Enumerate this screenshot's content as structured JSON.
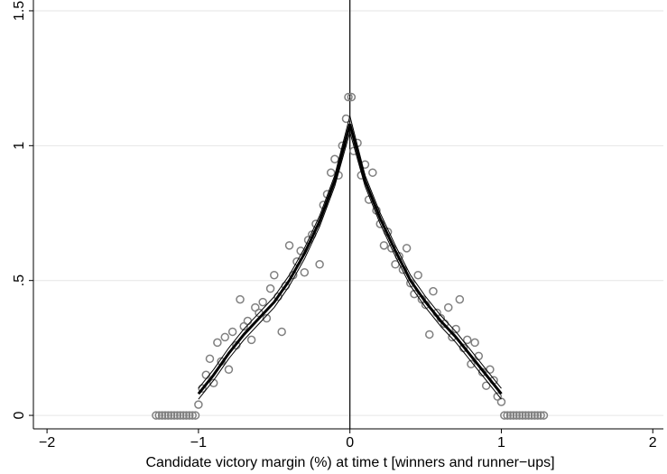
{
  "chart_data": {
    "type": "scatter",
    "x_label": "Candidate victory margin (%) at time t [winners and runner−ups]",
    "xlim": [
      -2.09,
      2.07
    ],
    "ylim": [
      -0.05,
      1.54
    ],
    "xticks": [
      {
        "value": -2,
        "label": "−2"
      },
      {
        "value": -1,
        "label": "−1"
      },
      0,
      1,
      2
    ],
    "yticks": [
      0,
      {
        "value": 0.5,
        "label": ".5"
      },
      1,
      1.5
    ],
    "grid": true,
    "vline": 0,
    "series": [
      {
        "type": "scatter",
        "color": "#808080",
        "x": [
          -1.0,
          -0.975,
          -0.95,
          -0.925,
          -0.9,
          -0.875,
          -0.85,
          -0.825,
          -0.8,
          -0.775,
          -0.75,
          -0.725,
          -0.7,
          -0.675,
          -0.65,
          -0.625,
          -0.6,
          -0.575,
          -0.55,
          -0.525,
          -0.5,
          -0.475,
          -0.45,
          -0.425,
          -0.4,
          -0.375,
          -0.35,
          -0.325,
          -0.3,
          -0.275,
          -0.25,
          -0.225,
          -0.2,
          -0.175,
          -0.15,
          -0.125,
          -0.1,
          -0.075,
          -0.05,
          -0.025,
          -0.01,
          0.01,
          0.025,
          0.05,
          0.075,
          0.1,
          0.125,
          0.15,
          0.175,
          0.2,
          0.225,
          0.25,
          0.275,
          0.3,
          0.325,
          0.35,
          0.375,
          0.4,
          0.425,
          0.45,
          0.475,
          0.5,
          0.525,
          0.55,
          0.575,
          0.6,
          0.625,
          0.65,
          0.675,
          0.7,
          0.725,
          0.75,
          0.775,
          0.8,
          0.825,
          0.85,
          0.875,
          0.9,
          0.925,
          0.95,
          0.975,
          1.0
        ],
        "values": [
          0.04,
          0.1,
          0.15,
          0.21,
          0.12,
          0.27,
          0.2,
          0.29,
          0.17,
          0.31,
          0.26,
          0.43,
          0.33,
          0.35,
          0.28,
          0.4,
          0.38,
          0.42,
          0.36,
          0.47,
          0.52,
          0.44,
          0.31,
          0.48,
          0.63,
          0.52,
          0.57,
          0.61,
          0.53,
          0.65,
          0.67,
          0.71,
          0.56,
          0.78,
          0.82,
          0.9,
          0.95,
          0.89,
          1.0,
          1.1,
          1.18,
          1.18,
          0.98,
          1.01,
          0.89,
          0.93,
          0.8,
          0.9,
          0.76,
          0.71,
          0.63,
          0.68,
          0.62,
          0.56,
          0.59,
          0.54,
          0.62,
          0.49,
          0.45,
          0.52,
          0.43,
          0.41,
          0.3,
          0.46,
          0.38,
          0.36,
          0.34,
          0.4,
          0.29,
          0.32,
          0.43,
          0.25,
          0.28,
          0.19,
          0.27,
          0.22,
          0.16,
          0.11,
          0.17,
          0.13,
          0.07,
          0.05
        ]
      },
      {
        "type": "scatter",
        "color": "#808080",
        "x": [
          -1.28,
          -1.26,
          -1.24,
          -1.22,
          -1.2,
          -1.18,
          -1.16,
          -1.14,
          -1.12,
          -1.1,
          -1.08,
          -1.06,
          -1.04,
          -1.02,
          1.02,
          1.04,
          1.06,
          1.08,
          1.1,
          1.12,
          1.14,
          1.16,
          1.18,
          1.2,
          1.22,
          1.24,
          1.26,
          1.28
        ],
        "values": [
          0,
          0,
          0,
          0,
          0,
          0,
          0,
          0,
          0,
          0,
          0,
          0,
          0,
          0,
          0,
          0,
          0,
          0,
          0,
          0,
          0,
          0,
          0,
          0,
          0,
          0,
          0,
          0
        ]
      },
      {
        "type": "line",
        "color": "#000000",
        "width": 3,
        "x": [
          -1,
          -0.9,
          -0.8,
          -0.7,
          -0.6,
          -0.5,
          -0.4,
          -0.3,
          -0.2,
          -0.1,
          0
        ],
        "values": [
          0.08,
          0.15,
          0.23,
          0.3,
          0.36,
          0.42,
          0.5,
          0.6,
          0.72,
          0.87,
          1.08
        ]
      },
      {
        "type": "line",
        "color": "#000000",
        "width": 1,
        "x": [
          -1,
          -0.9,
          -0.8,
          -0.7,
          -0.6,
          -0.5,
          -0.4,
          -0.3,
          -0.2,
          -0.1,
          0
        ],
        "values": [
          0.06,
          0.13,
          0.21,
          0.28,
          0.34,
          0.4,
          0.48,
          0.58,
          0.7,
          0.85,
          1.05
        ]
      },
      {
        "type": "line",
        "color": "#000000",
        "width": 1,
        "x": [
          -1,
          -0.9,
          -0.8,
          -0.7,
          -0.6,
          -0.5,
          -0.4,
          -0.3,
          -0.2,
          -0.1,
          0
        ],
        "values": [
          0.1,
          0.17,
          0.25,
          0.32,
          0.38,
          0.44,
          0.52,
          0.62,
          0.74,
          0.89,
          1.11
        ]
      },
      {
        "type": "line",
        "color": "#000000",
        "width": 3,
        "x": [
          0,
          0.1,
          0.2,
          0.3,
          0.4,
          0.5,
          0.6,
          0.7,
          0.8,
          0.9,
          1
        ],
        "values": [
          1.08,
          0.87,
          0.73,
          0.61,
          0.5,
          0.42,
          0.35,
          0.29,
          0.22,
          0.15,
          0.08
        ]
      },
      {
        "type": "line",
        "color": "#000000",
        "width": 1,
        "x": [
          0,
          0.1,
          0.2,
          0.3,
          0.4,
          0.5,
          0.6,
          0.7,
          0.8,
          0.9,
          1
        ],
        "values": [
          1.05,
          0.85,
          0.71,
          0.59,
          0.48,
          0.4,
          0.33,
          0.27,
          0.2,
          0.13,
          0.06
        ]
      },
      {
        "type": "line",
        "color": "#000000",
        "width": 1,
        "x": [
          0,
          0.1,
          0.2,
          0.3,
          0.4,
          0.5,
          0.6,
          0.7,
          0.8,
          0.9,
          1
        ],
        "values": [
          1.11,
          0.89,
          0.75,
          0.63,
          0.52,
          0.44,
          0.37,
          0.31,
          0.24,
          0.17,
          0.1
        ]
      }
    ]
  }
}
